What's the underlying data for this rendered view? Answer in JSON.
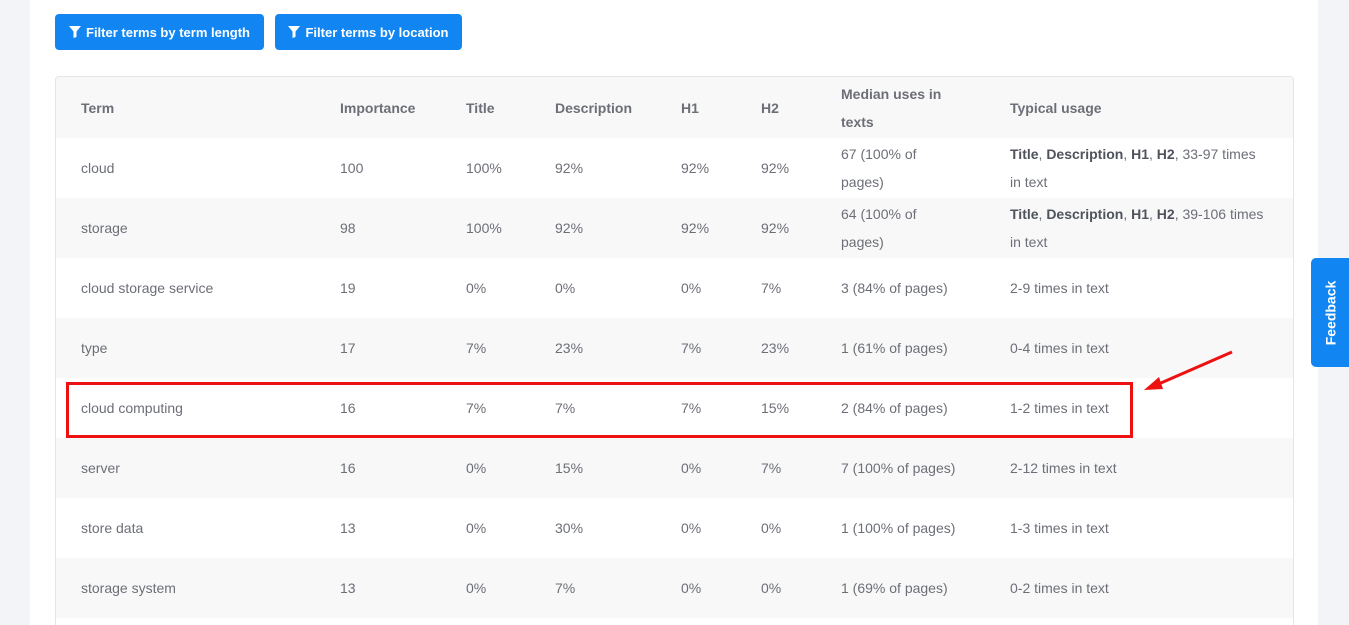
{
  "filters": {
    "by_length": "Filter terms by term length",
    "by_location": "Filter terms by location"
  },
  "table": {
    "headers": {
      "term": "Term",
      "importance": "Importance",
      "title": "Title",
      "description": "Description",
      "h1": "H1",
      "h2": "H2",
      "median_line1": "Median uses in",
      "median_line2": "texts",
      "usage": "Typical usage"
    },
    "rows": [
      {
        "term": "cloud",
        "importance": "100",
        "title": "100%",
        "description": "92%",
        "h1": "92%",
        "h2": "92%",
        "median_line1": "67 (100% of",
        "median_line2": "pages)",
        "usage_b1": "Title",
        "usage_b2": "Description",
        "usage_b3": "H1",
        "usage_b4": "H2",
        "usage_tail1": ", 33-97 times",
        "usage_tail2": "in text"
      },
      {
        "term": "storage",
        "importance": "98",
        "title": "100%",
        "description": "92%",
        "h1": "92%",
        "h2": "92%",
        "median_line1": "64 (100% of",
        "median_line2": "pages)",
        "usage_b1": "Title",
        "usage_b2": "Description",
        "usage_b3": "H1",
        "usage_b4": "H2",
        "usage_tail1": ", 39-106 times",
        "usage_tail2": "in text"
      },
      {
        "term": "cloud storage service",
        "importance": "19",
        "title": "0%",
        "description": "0%",
        "h1": "0%",
        "h2": "7%",
        "median": "3 (84% of pages)",
        "usage": "2-9 times in text"
      },
      {
        "term": "type",
        "importance": "17",
        "title": "7%",
        "description": "23%",
        "h1": "7%",
        "h2": "23%",
        "median": "1 (61% of pages)",
        "usage": "0-4 times in text"
      },
      {
        "term": "cloud computing",
        "importance": "16",
        "title": "7%",
        "description": "7%",
        "h1": "7%",
        "h2": "15%",
        "median": "2 (84% of pages)",
        "usage": "1-2 times in text"
      },
      {
        "term": "server",
        "importance": "16",
        "title": "0%",
        "description": "15%",
        "h1": "0%",
        "h2": "7%",
        "median": "7 (100% of pages)",
        "usage": "2-12 times in text"
      },
      {
        "term": "store data",
        "importance": "13",
        "title": "0%",
        "description": "30%",
        "h1": "0%",
        "h2": "0%",
        "median": "1 (100% of pages)",
        "usage": "1-3 times in text"
      },
      {
        "term": "storage system",
        "importance": "13",
        "title": "0%",
        "description": "7%",
        "h1": "0%",
        "h2": "0%",
        "median": "1 (69% of pages)",
        "usage": "0-2 times in text"
      }
    ]
  },
  "feedback": "Feedback",
  "colors": {
    "accent": "#1186f2",
    "highlight": "#ee1111",
    "row_shade": "#f8f8f8"
  },
  "icons": {
    "filter": "funnel-icon"
  }
}
